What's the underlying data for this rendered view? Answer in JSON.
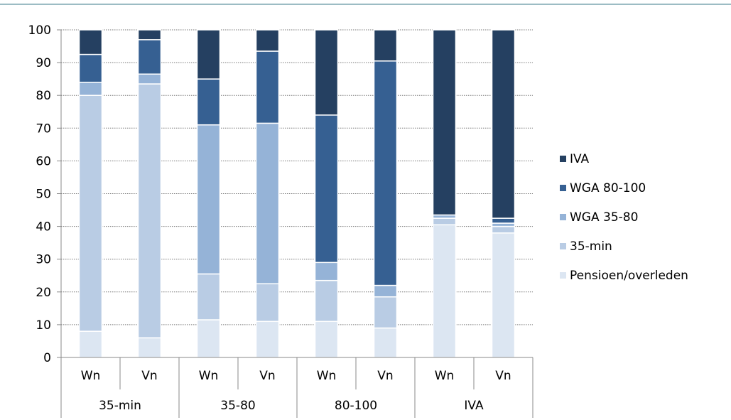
{
  "chart_data": {
    "type": "bar",
    "stacked": true,
    "categories": [
      "Wn",
      "Vn",
      "Wn",
      "Vn",
      "Wn",
      "Vn",
      "Wn",
      "Vn"
    ],
    "groups": [
      "35-min",
      "35-80",
      "80-100",
      "IVA"
    ],
    "ylim": [
      0,
      100
    ],
    "yticks": [
      0,
      10,
      20,
      30,
      40,
      50,
      60,
      70,
      80,
      90,
      100
    ],
    "grid": true,
    "legend_position": "right",
    "series": [
      {
        "name": "Pensioen/overleden",
        "color": "#dce6f2",
        "values": [
          8,
          6,
          11.5,
          11,
          11,
          9,
          40.5,
          38
        ]
      },
      {
        "name": "35-min",
        "color": "#b9cce4",
        "values": [
          72,
          77.5,
          14,
          11.5,
          12.5,
          9.5,
          2,
          2
        ]
      },
      {
        "name": "WGA 35-80",
        "color": "#95b3d7",
        "values": [
          4,
          3,
          45.5,
          49,
          5.5,
          3.5,
          1,
          1
        ]
      },
      {
        "name": "WGA 80-100",
        "color": "#366092",
        "values": [
          8.5,
          10.5,
          14,
          22,
          45,
          68.5,
          0,
          1.5
        ]
      },
      {
        "name": "IVA",
        "color": "#254061",
        "values": [
          7.5,
          3,
          15,
          6.5,
          26,
          9.5,
          56.5,
          57.5
        ]
      }
    ]
  }
}
